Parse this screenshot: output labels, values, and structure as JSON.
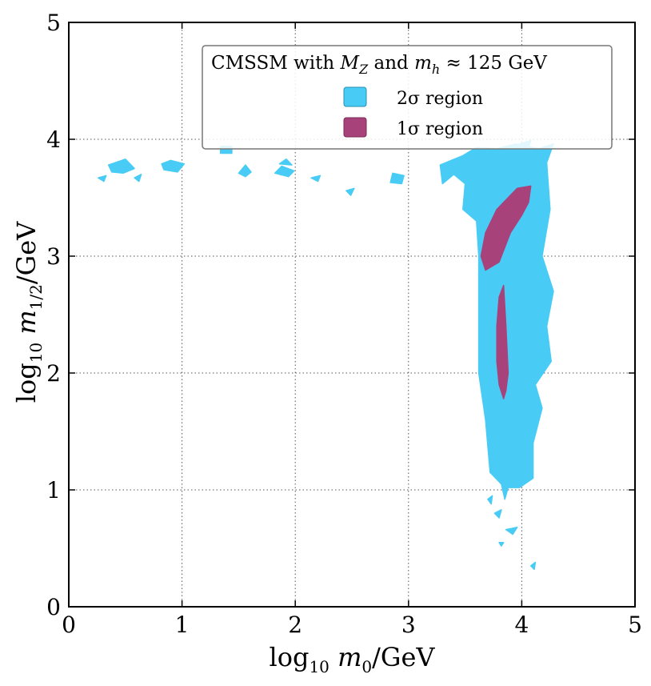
{
  "chart_data": {
    "type": "area",
    "title": "",
    "xlabel": "log₁₀ m₀/GeV",
    "ylabel": "log₁₀ m₁/₂/GeV",
    "xlim": [
      0,
      5
    ],
    "ylim": [
      0,
      5
    ],
    "xticks": [
      "0",
      "1",
      "2",
      "3",
      "4",
      "5"
    ],
    "yticks": [
      "0",
      "1",
      "2",
      "3",
      "4",
      "5"
    ],
    "grid": true,
    "legend": {
      "placement": "top-right",
      "title": "CMSSM with M_Z and m_h ≈ 125 GeV",
      "entries": [
        {
          "name": "2σ region",
          "color": "#48CCF6"
        },
        {
          "name": "1σ region",
          "color": "#A8427A"
        }
      ]
    },
    "series": [
      {
        "name": "2σ region",
        "color": "#48CCF6",
        "regions": [
          [
            [
              3.3,
              3.62
            ],
            [
              3.28,
              3.78
            ],
            [
              3.48,
              3.86
            ],
            [
              3.6,
              3.93
            ],
            [
              3.78,
              3.92
            ],
            [
              3.95,
              3.96
            ],
            [
              4.15,
              3.92
            ],
            [
              4.28,
              3.96
            ],
            [
              4.22,
              3.8
            ],
            [
              4.25,
              3.4
            ],
            [
              4.18,
              3.0
            ],
            [
              4.28,
              2.7
            ],
            [
              4.22,
              2.4
            ],
            [
              4.26,
              2.1
            ],
            [
              4.12,
              1.9
            ],
            [
              4.18,
              1.7
            ],
            [
              4.1,
              1.4
            ],
            [
              4.1,
              1.1
            ],
            [
              3.98,
              1.02
            ],
            [
              3.88,
              1.02
            ],
            [
              3.85,
              0.92
            ],
            [
              3.82,
              1.05
            ],
            [
              3.72,
              1.15
            ],
            [
              3.68,
              1.6
            ],
            [
              3.62,
              2.0
            ],
            [
              3.62,
              2.5
            ],
            [
              3.62,
              3.0
            ],
            [
              3.6,
              3.3
            ],
            [
              3.48,
              3.4
            ],
            [
              3.5,
              3.62
            ],
            [
              3.4,
              3.7
            ]
          ],
          [
            [
              1.34,
              3.94
            ],
            [
              1.44,
              3.94
            ],
            [
              1.44,
              3.88
            ],
            [
              1.34,
              3.88
            ]
          ],
          [
            [
              0.84,
              3.74
            ],
            [
              0.96,
              3.72
            ],
            [
              1.02,
              3.79
            ],
            [
              0.9,
              3.82
            ],
            [
              0.82,
              3.79
            ]
          ],
          [
            [
              0.35,
              3.78
            ],
            [
              0.5,
              3.83
            ],
            [
              0.58,
              3.75
            ],
            [
              0.48,
              3.71
            ],
            [
              0.38,
              3.72
            ]
          ],
          [
            [
              1.82,
              3.71
            ],
            [
              1.94,
              3.68
            ],
            [
              1.99,
              3.73
            ],
            [
              1.88,
              3.77
            ]
          ],
          [
            [
              1.86,
              3.79
            ],
            [
              1.92,
              3.83
            ],
            [
              1.97,
              3.78
            ]
          ],
          [
            [
              1.5,
              3.71
            ],
            [
              1.56,
              3.78
            ],
            [
              1.61,
              3.72
            ],
            [
              1.56,
              3.68
            ]
          ],
          [
            [
              2.84,
              3.63
            ],
            [
              2.94,
              3.62
            ],
            [
              2.96,
              3.69
            ],
            [
              2.86,
              3.71
            ]
          ],
          [
            [
              0.26,
              3.67
            ],
            [
              0.33,
              3.69
            ],
            [
              0.31,
              3.64
            ]
          ],
          [
            [
              0.58,
              3.67
            ],
            [
              0.64,
              3.7
            ],
            [
              0.62,
              3.64
            ]
          ],
          [
            [
              2.14,
              3.67
            ],
            [
              2.22,
              3.69
            ],
            [
              2.2,
              3.64
            ]
          ],
          [
            [
              2.45,
              3.56
            ],
            [
              2.52,
              3.58
            ],
            [
              2.49,
              3.52
            ]
          ],
          [
            [
              3.98,
              3.96
            ],
            [
              4.08,
              3.99
            ],
            [
              4.06,
              3.93
            ]
          ],
          [
            [
              3.9,
              1.38
            ],
            [
              3.98,
              1.4
            ],
            [
              3.95,
              1.33
            ]
          ],
          [
            [
              3.76,
              0.8
            ],
            [
              3.82,
              0.83
            ],
            [
              3.8,
              0.76
            ]
          ],
          [
            [
              3.86,
              0.66
            ],
            [
              3.96,
              0.68
            ],
            [
              3.92,
              0.62
            ]
          ],
          [
            [
              3.8,
              0.55
            ],
            [
              3.84,
              0.55
            ],
            [
              3.82,
              0.52
            ]
          ],
          [
            [
              4.08,
              0.35
            ],
            [
              4.12,
              0.38
            ],
            [
              4.11,
              0.32
            ]
          ],
          [
            [
              3.7,
              0.92
            ],
            [
              3.74,
              0.95
            ],
            [
              3.73,
              0.88
            ]
          ]
        ]
      },
      {
        "name": "1σ region",
        "color": "#A8427A",
        "regions": [
          [
            [
              4.08,
              3.6
            ],
            [
              3.96,
              3.58
            ],
            [
              3.78,
              3.4
            ],
            [
              3.68,
              3.2
            ],
            [
              3.64,
              3.0
            ],
            [
              3.68,
              2.88
            ],
            [
              3.8,
              2.95
            ],
            [
              3.9,
              3.2
            ],
            [
              4.0,
              3.35
            ],
            [
              4.06,
              3.46
            ]
          ],
          [
            [
              3.84,
              2.75
            ],
            [
              3.86,
              2.4
            ],
            [
              3.88,
              2.0
            ],
            [
              3.86,
              1.85
            ],
            [
              3.84,
              1.78
            ],
            [
              3.8,
              1.9
            ],
            [
              3.78,
              2.1
            ],
            [
              3.78,
              2.4
            ],
            [
              3.8,
              2.65
            ]
          ]
        ]
      }
    ]
  }
}
